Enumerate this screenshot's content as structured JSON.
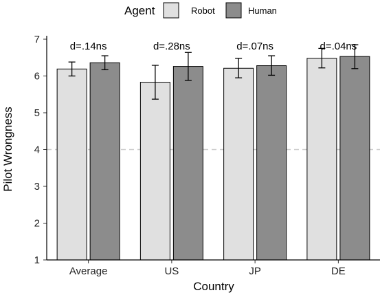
{
  "chart_data": {
    "type": "bar",
    "title": "",
    "xlabel": "Country",
    "ylabel": "Pilot Wrongness",
    "categories": [
      "Average",
      "US",
      "JP",
      "DE"
    ],
    "ylim": [
      1,
      7
    ],
    "yticks": [
      1,
      2,
      3,
      4,
      5,
      6,
      7
    ],
    "reference_line": {
      "y": 4,
      "color": "#cccccc",
      "style": "dashed"
    },
    "legend": {
      "title": "Agent",
      "position": "top"
    },
    "series": [
      {
        "name": "Robot",
        "color": "#e0e0e0",
        "values": [
          6.19,
          5.83,
          6.21,
          6.48
        ],
        "error_low": [
          6.0,
          5.37,
          5.95,
          6.22
        ],
        "error_high": [
          6.38,
          6.29,
          6.48,
          6.75
        ]
      },
      {
        "name": "Human",
        "color": "#8c8c8c",
        "values": [
          6.36,
          6.26,
          6.28,
          6.53
        ],
        "error_low": [
          6.17,
          5.88,
          6.02,
          6.2
        ],
        "error_high": [
          6.55,
          6.64,
          6.55,
          6.85
        ]
      }
    ],
    "annotations": [
      "d=.14ns",
      "d=.28ns",
      "d=.07ns",
      "d=.04ns"
    ],
    "grid": false
  }
}
